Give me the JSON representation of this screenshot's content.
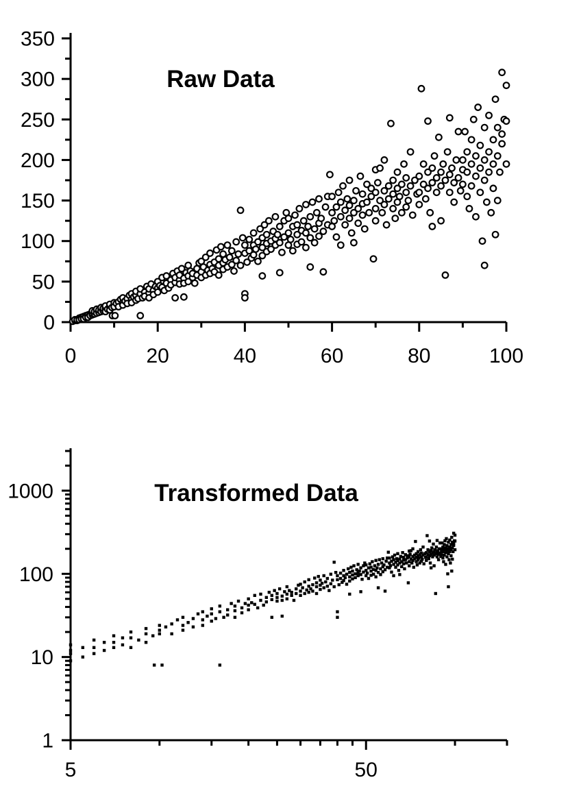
{
  "page": {
    "background": "#ffffff",
    "foreground": "#000000"
  },
  "chart_data": {
    "type": "scatter",
    "description": "Same x,y dataset shown twice: raw on linear axes, transformed on log-log axes",
    "points_xy": [
      [
        0.5,
        1
      ],
      [
        1,
        2
      ],
      [
        1,
        3
      ],
      [
        1.5,
        2
      ],
      [
        1.5,
        3
      ],
      [
        2,
        4
      ],
      [
        2,
        5
      ],
      [
        2,
        3
      ],
      [
        2.5,
        6
      ],
      [
        2.5,
        4
      ],
      [
        3,
        5
      ],
      [
        3,
        7
      ],
      [
        3,
        4
      ],
      [
        3.5,
        8
      ],
      [
        3.5,
        6
      ],
      [
        4,
        7
      ],
      [
        4,
        9
      ],
      [
        4,
        6
      ],
      [
        4.5,
        10
      ],
      [
        4.5,
        8
      ],
      [
        5,
        9
      ],
      [
        5,
        12
      ],
      [
        5,
        11
      ],
      [
        5,
        14
      ],
      [
        5.5,
        10
      ],
      [
        5.5,
        13
      ],
      [
        6,
        13
      ],
      [
        6,
        11
      ],
      [
        6,
        16
      ],
      [
        6.5,
        12
      ],
      [
        6.5,
        15
      ],
      [
        7,
        15
      ],
      [
        7,
        13
      ],
      [
        7,
        18
      ],
      [
        7.5,
        14
      ],
      [
        7.5,
        17
      ],
      [
        8,
        17
      ],
      [
        8,
        20
      ],
      [
        8,
        13
      ],
      [
        8.5,
        16
      ],
      [
        9,
        19
      ],
      [
        9,
        22
      ],
      [
        9,
        15
      ],
      [
        9.5,
        18
      ],
      [
        9.6,
        8
      ],
      [
        10,
        21
      ],
      [
        10,
        24
      ],
      [
        10,
        19
      ],
      [
        10.2,
        8
      ],
      [
        10.5,
        23
      ],
      [
        11,
        25
      ],
      [
        11,
        19
      ],
      [
        11.5,
        28
      ],
      [
        12,
        24
      ],
      [
        12,
        30
      ],
      [
        12,
        21
      ],
      [
        12.5,
        26
      ],
      [
        13,
        29
      ],
      [
        13,
        23
      ],
      [
        13.5,
        33
      ],
      [
        14,
        28
      ],
      [
        14,
        35
      ],
      [
        14,
        24
      ],
      [
        14.5,
        31
      ],
      [
        15,
        33
      ],
      [
        15,
        27
      ],
      [
        15,
        38
      ],
      [
        15.5,
        29
      ],
      [
        16,
        35
      ],
      [
        16,
        8
      ],
      [
        16,
        41
      ],
      [
        16.5,
        30
      ],
      [
        17,
        37
      ],
      [
        17,
        32
      ],
      [
        17.5,
        44
      ],
      [
        18,
        36
      ],
      [
        18,
        41
      ],
      [
        18,
        30
      ],
      [
        18.5,
        47
      ],
      [
        19,
        39
      ],
      [
        19,
        34
      ],
      [
        19.5,
        44
      ],
      [
        20,
        42
      ],
      [
        20,
        37
      ],
      [
        20,
        50
      ],
      [
        20.5,
        45
      ],
      [
        21,
        43
      ],
      [
        21,
        55
      ],
      [
        21.5,
        39
      ],
      [
        22,
        48
      ],
      [
        22,
        57
      ],
      [
        22.5,
        42
      ],
      [
        23,
        52
      ],
      [
        23,
        46
      ],
      [
        23.5,
        60
      ],
      [
        24,
        49
      ],
      [
        24,
        55
      ],
      [
        24,
        30
      ],
      [
        24.5,
        63
      ],
      [
        25,
        52
      ],
      [
        25,
        47
      ],
      [
        25,
        58
      ],
      [
        25.5,
        66
      ],
      [
        26,
        54
      ],
      [
        26,
        31
      ],
      [
        26,
        48
      ],
      [
        26.5,
        61
      ],
      [
        27,
        57
      ],
      [
        27,
        50
      ],
      [
        27,
        70
      ],
      [
        27.5,
        63
      ],
      [
        28,
        55
      ],
      [
        28,
        60
      ],
      [
        28.5,
        48
      ],
      [
        29,
        66
      ],
      [
        29,
        58
      ],
      [
        29.5,
        73
      ],
      [
        30,
        62
      ],
      [
        30,
        75
      ],
      [
        30,
        55
      ],
      [
        30.5,
        68
      ],
      [
        31,
        58
      ],
      [
        31,
        80
      ],
      [
        31.5,
        64
      ],
      [
        32,
        71
      ],
      [
        32,
        60
      ],
      [
        32,
        85
      ],
      [
        32.5,
        66
      ],
      [
        33,
        74
      ],
      [
        33,
        62
      ],
      [
        33.5,
        89
      ],
      [
        34,
        70
      ],
      [
        34,
        78
      ],
      [
        34,
        58
      ],
      [
        34.5,
        93
      ],
      [
        35,
        73
      ],
      [
        35,
        65
      ],
      [
        35,
        84
      ],
      [
        35.5,
        77
      ],
      [
        36,
        68
      ],
      [
        36,
        95
      ],
      [
        36.5,
        80
      ],
      [
        37,
        71
      ],
      [
        37,
        88
      ],
      [
        37.5,
        63
      ],
      [
        38,
        99
      ],
      [
        38,
        76
      ],
      [
        38.5,
        84
      ],
      [
        39,
        70
      ],
      [
        39.5,
        104
      ],
      [
        39,
        138
      ],
      [
        40,
        35
      ],
      [
        40,
        30
      ],
      [
        40,
        85
      ],
      [
        40,
        95
      ],
      [
        40.5,
        74
      ],
      [
        41,
        102
      ],
      [
        41,
        88
      ],
      [
        41.5,
        79
      ],
      [
        42,
        95
      ],
      [
        42,
        83
      ],
      [
        42,
        110
      ],
      [
        42.5,
        90
      ],
      [
        43,
        99
      ],
      [
        43,
        75
      ],
      [
        43.5,
        115
      ],
      [
        44,
        92
      ],
      [
        44,
        104
      ],
      [
        44,
        82
      ],
      [
        44.5,
        120
      ],
      [
        45,
        97
      ],
      [
        45,
        87
      ],
      [
        45,
        108
      ],
      [
        45.5,
        125
      ],
      [
        46,
        100
      ],
      [
        46,
        90
      ],
      [
        46.5,
        112
      ],
      [
        47,
        103
      ],
      [
        47,
        95
      ],
      [
        47,
        130
      ],
      [
        47.5,
        108
      ],
      [
        48,
        98
      ],
      [
        48,
        118
      ],
      [
        48.5,
        86
      ],
      [
        49,
        125
      ],
      [
        49,
        105
      ],
      [
        49.5,
        135
      ],
      [
        44,
        57
      ],
      [
        48,
        61
      ],
      [
        50,
        110
      ],
      [
        50,
        95
      ],
      [
        50,
        128
      ],
      [
        50.5,
        102
      ],
      [
        51,
        118
      ],
      [
        51,
        88
      ],
      [
        51.5,
        132
      ],
      [
        52,
        108
      ],
      [
        52,
        120
      ],
      [
        52,
        96
      ],
      [
        52.5,
        140
      ],
      [
        53,
        113
      ],
      [
        53,
        99
      ],
      [
        53.5,
        125
      ],
      [
        54,
        110
      ],
      [
        54,
        145
      ],
      [
        54,
        92
      ],
      [
        54.5,
        118
      ],
      [
        55,
        130
      ],
      [
        55,
        104
      ],
      [
        55,
        68
      ],
      [
        55.5,
        148
      ],
      [
        56,
        115
      ],
      [
        56,
        98
      ],
      [
        56.5,
        135
      ],
      [
        57,
        122
      ],
      [
        57,
        106
      ],
      [
        57,
        152
      ],
      [
        57.5,
        128
      ],
      [
        58,
        112
      ],
      [
        58.5,
        142
      ],
      [
        59,
        120
      ],
      [
        59.5,
        182
      ],
      [
        58,
        62
      ],
      [
        59,
        155
      ],
      [
        60,
        135
      ],
      [
        60,
        118
      ],
      [
        60,
        155
      ],
      [
        60.5,
        125
      ],
      [
        61,
        142
      ],
      [
        61,
        105
      ],
      [
        61.5,
        160
      ],
      [
        62,
        130
      ],
      [
        62,
        148
      ],
      [
        62,
        95
      ],
      [
        62.5,
        168
      ],
      [
        63,
        138
      ],
      [
        63,
        120
      ],
      [
        63.5,
        152
      ],
      [
        64,
        144
      ],
      [
        64,
        128
      ],
      [
        64,
        175
      ],
      [
        64.5,
        110
      ],
      [
        65,
        150
      ],
      [
        65,
        135
      ],
      [
        65,
        98
      ],
      [
        65.5,
        162
      ],
      [
        66,
        140
      ],
      [
        66,
        122
      ],
      [
        66.5,
        180
      ],
      [
        67,
        146
      ],
      [
        67,
        132
      ],
      [
        67,
        158
      ],
      [
        67.5,
        115
      ],
      [
        68,
        170
      ],
      [
        68,
        148
      ],
      [
        68.5,
        135
      ],
      [
        69,
        155
      ],
      [
        69.5,
        78
      ],
      [
        70,
        188
      ],
      [
        69,
        165
      ],
      [
        70,
        160
      ],
      [
        70,
        140
      ],
      [
        70,
        125
      ],
      [
        70.5,
        172
      ],
      [
        71,
        150
      ],
      [
        71,
        190
      ],
      [
        71.5,
        135
      ],
      [
        72,
        162
      ],
      [
        72,
        145
      ],
      [
        72,
        200
      ],
      [
        72.5,
        120
      ],
      [
        73,
        168
      ],
      [
        73,
        152
      ],
      [
        73.5,
        245
      ],
      [
        74,
        158
      ],
      [
        74,
        140
      ],
      [
        74,
        175
      ],
      [
        74.5,
        128
      ],
      [
        75,
        165
      ],
      [
        75,
        148
      ],
      [
        75,
        185
      ],
      [
        75.5,
        155
      ],
      [
        76,
        170
      ],
      [
        76,
        135
      ],
      [
        76.5,
        195
      ],
      [
        77,
        160
      ],
      [
        77,
        142
      ],
      [
        77,
        178
      ],
      [
        77.5,
        150
      ],
      [
        78,
        168
      ],
      [
        78,
        210
      ],
      [
        78.5,
        132
      ],
      [
        79,
        175
      ],
      [
        79.5,
        158
      ],
      [
        80,
        180
      ],
      [
        80,
        160
      ],
      [
        80,
        145
      ],
      [
        80.5,
        288
      ],
      [
        81,
        170
      ],
      [
        81,
        195
      ],
      [
        81.5,
        152
      ],
      [
        82,
        185
      ],
      [
        82,
        165
      ],
      [
        82,
        248
      ],
      [
        82.5,
        135
      ],
      [
        83,
        190
      ],
      [
        83,
        172
      ],
      [
        83,
        118
      ],
      [
        83.5,
        205
      ],
      [
        84,
        178
      ],
      [
        84,
        160
      ],
      [
        84.5,
        228
      ],
      [
        85,
        185
      ],
      [
        85,
        125
      ],
      [
        85,
        168
      ],
      [
        85.5,
        195
      ],
      [
        86,
        175
      ],
      [
        86,
        58
      ],
      [
        86.5,
        210
      ],
      [
        87,
        182
      ],
      [
        87,
        160
      ],
      [
        87,
        252
      ],
      [
        87.5,
        190
      ],
      [
        88,
        172
      ],
      [
        88,
        148
      ],
      [
        88.5,
        200
      ],
      [
        89,
        178
      ],
      [
        89,
        235
      ],
      [
        89.5,
        162
      ],
      [
        90,
        188
      ],
      [
        90,
        200
      ],
      [
        90,
        170
      ],
      [
        90.5,
        235
      ],
      [
        91,
        185
      ],
      [
        91,
        155
      ],
      [
        91,
        210
      ],
      [
        91.5,
        140
      ],
      [
        92,
        195
      ],
      [
        92,
        225
      ],
      [
        92,
        168
      ],
      [
        92.5,
        250
      ],
      [
        93,
        180
      ],
      [
        93,
        205
      ],
      [
        93,
        130
      ],
      [
        93.5,
        265
      ],
      [
        94,
        190
      ],
      [
        94,
        160
      ],
      [
        94,
        218
      ],
      [
        94.5,
        100
      ],
      [
        95,
        200
      ],
      [
        95,
        175
      ],
      [
        95,
        240
      ],
      [
        95,
        70
      ],
      [
        95.5,
        148
      ],
      [
        96,
        210
      ],
      [
        96,
        185
      ],
      [
        96,
        255
      ],
      [
        96.5,
        135
      ],
      [
        97,
        195
      ],
      [
        97,
        225
      ],
      [
        97,
        165
      ],
      [
        97.5,
        275
      ],
      [
        98,
        205
      ],
      [
        98,
        240
      ],
      [
        98,
        150
      ],
      [
        98.5,
        185
      ],
      [
        99,
        308
      ],
      [
        99,
        220
      ],
      [
        99.5,
        250
      ],
      [
        100,
        195
      ],
      [
        100,
        292
      ],
      [
        97.5,
        108
      ],
      [
        99,
        232
      ],
      [
        100,
        248
      ]
    ],
    "charts": [
      {
        "id": "raw",
        "title": "Raw Data",
        "marker": "open-circle",
        "xscale": "linear",
        "yscale": "linear",
        "xlim": [
          0,
          100
        ],
        "ylim": [
          0,
          350
        ],
        "x_major_ticks": [
          0,
          20,
          40,
          60,
          80,
          100
        ],
        "x_tick_labels": [
          "0",
          "20",
          "40",
          "60",
          "80",
          "100"
        ],
        "x_minor_ticks": [
          10,
          30,
          50,
          70,
          90
        ],
        "y_major_ticks": [
          0,
          50,
          100,
          150,
          200,
          250,
          300,
          350
        ],
        "y_tick_labels": [
          "0",
          "50",
          "100",
          "150",
          "200",
          "250",
          "300",
          "350"
        ],
        "y_minor_ticks": [
          25,
          75,
          125,
          175,
          225,
          275,
          325
        ],
        "xlabel": "",
        "ylabel": "",
        "grid": false,
        "legend": false
      },
      {
        "id": "transformed",
        "title": "Transformed Data",
        "marker": "filled-square",
        "xscale": "log",
        "yscale": "log",
        "xlim": [
          5,
          150
        ],
        "ylim": [
          1,
          3000
        ],
        "x_major_ticks": [
          5,
          50
        ],
        "x_tick_labels": [
          "5",
          "50"
        ],
        "x_minor_ticks": [
          10,
          15,
          20,
          25,
          30,
          35,
          40,
          45,
          100,
          150
        ],
        "y_major_ticks": [
          1,
          10,
          100,
          1000
        ],
        "y_tick_labels": [
          "1",
          "10",
          "100",
          "1000"
        ],
        "y_minor_ticks": [
          2,
          3,
          4,
          5,
          6,
          7,
          8,
          9,
          20,
          30,
          40,
          50,
          60,
          70,
          80,
          90,
          200,
          300,
          400,
          500,
          600,
          700,
          800,
          900,
          2000,
          3000
        ],
        "xlabel": "",
        "ylabel": "",
        "grid": false,
        "legend": false
      }
    ]
  }
}
